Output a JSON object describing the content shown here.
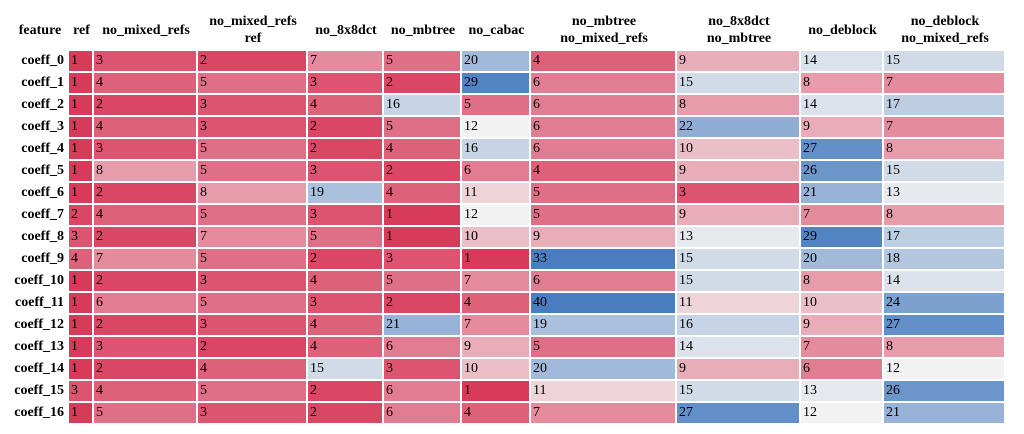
{
  "chart_data": {
    "type": "heatmap",
    "corner_label": "feature",
    "columns": [
      "ref",
      "no_mixed_refs",
      "no_mixed_refs\nref",
      "no_8x8dct",
      "no_mbtree",
      "no_cabac",
      "no_mbtree\nno_mixed_refs",
      "no_8x8dct\nno_mbtree",
      "no_deblock",
      "no_deblock\nno_mixed_refs"
    ],
    "rows": [
      "coeff_0",
      "coeff_1",
      "coeff_2",
      "coeff_3",
      "coeff_4",
      "coeff_5",
      "coeff_6",
      "coeff_7",
      "coeff_8",
      "coeff_9",
      "coeff_10",
      "coeff_11",
      "coeff_12",
      "coeff_13",
      "coeff_14",
      "coeff_15",
      "coeff_16"
    ],
    "values": [
      [
        1,
        3,
        2,
        7,
        5,
        20,
        4,
        9,
        14,
        15
      ],
      [
        1,
        4,
        5,
        3,
        2,
        29,
        6,
        15,
        8,
        7
      ],
      [
        1,
        2,
        3,
        4,
        16,
        5,
        6,
        8,
        14,
        17
      ],
      [
        1,
        4,
        3,
        2,
        5,
        12,
        6,
        22,
        9,
        7
      ],
      [
        1,
        3,
        5,
        2,
        4,
        16,
        6,
        10,
        27,
        8
      ],
      [
        1,
        8,
        5,
        3,
        2,
        6,
        4,
        9,
        26,
        15
      ],
      [
        1,
        2,
        8,
        19,
        4,
        11,
        5,
        3,
        21,
        13
      ],
      [
        2,
        4,
        5,
        3,
        1,
        12,
        5,
        9,
        7,
        8
      ],
      [
        3,
        2,
        7,
        5,
        1,
        10,
        9,
        13,
        29,
        17
      ],
      [
        4,
        7,
        5,
        2,
        3,
        1,
        33,
        15,
        20,
        18
      ],
      [
        1,
        2,
        3,
        4,
        5,
        7,
        6,
        15,
        8,
        14
      ],
      [
        1,
        6,
        5,
        3,
        2,
        4,
        40,
        11,
        10,
        24
      ],
      [
        1,
        2,
        3,
        4,
        21,
        7,
        19,
        16,
        9,
        27
      ],
      [
        1,
        3,
        2,
        4,
        6,
        9,
        5,
        14,
        7,
        8
      ],
      [
        1,
        2,
        4,
        15,
        3,
        10,
        20,
        9,
        6,
        12
      ],
      [
        3,
        4,
        5,
        2,
        6,
        1,
        11,
        15,
        13,
        26
      ],
      [
        1,
        5,
        3,
        2,
        6,
        4,
        7,
        27,
        12,
        21
      ]
    ],
    "colors": {
      "low": "#d83a5a",
      "mid": "#f2f2f2",
      "high": "#4a7dc0"
    }
  }
}
